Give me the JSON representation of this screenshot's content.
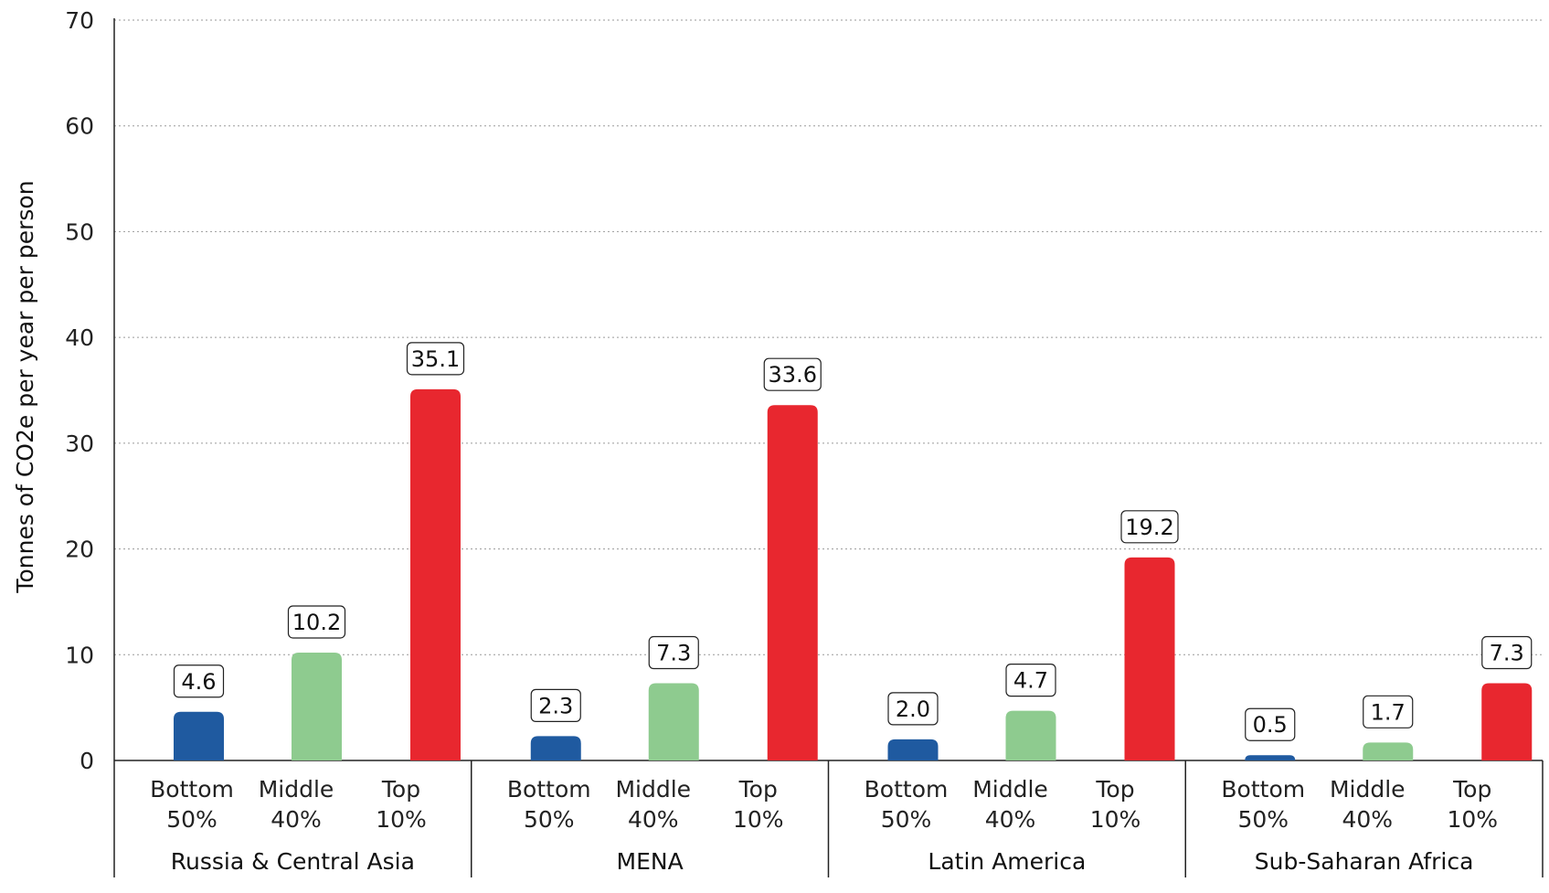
{
  "chart_data": {
    "type": "bar",
    "ylabel": "Tonnes of CO2e per year per person",
    "ylim": [
      0,
      70
    ],
    "yticks": [
      0,
      10,
      20,
      30,
      40,
      50,
      60,
      70
    ],
    "grid": true,
    "categories": [
      [
        "Bottom",
        "50%"
      ],
      [
        "Middle",
        "40%"
      ],
      [
        "Top",
        "10%"
      ]
    ],
    "groups": [
      {
        "name": "Russia & Central Asia",
        "values": [
          4.6,
          10.2,
          35.1
        ],
        "labels": [
          "4.6",
          "10.2",
          "35.1"
        ]
      },
      {
        "name": "MENA",
        "values": [
          2.3,
          7.3,
          33.6
        ],
        "labels": [
          "2.3",
          "7.3",
          "33.6"
        ]
      },
      {
        "name": "Latin America",
        "values": [
          2.0,
          4.7,
          19.2
        ],
        "labels": [
          "2.0",
          "4.7",
          "19.2"
        ]
      },
      {
        "name": "Sub-Saharan Africa",
        "values": [
          0.5,
          1.7,
          7.3
        ],
        "labels": [
          "0.5",
          "1.7",
          "7.3"
        ]
      }
    ],
    "colors": [
      "#1f5aa0",
      "#8ecb8f",
      "#e8272f"
    ]
  }
}
